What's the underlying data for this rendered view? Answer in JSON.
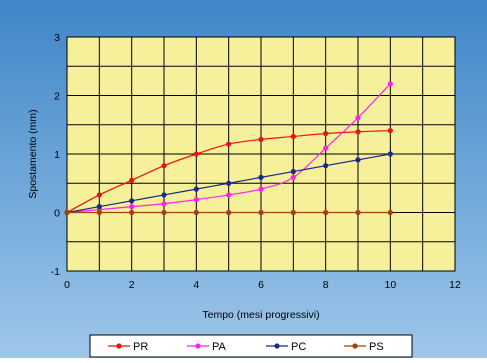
{
  "chart_data": {
    "type": "line",
    "title": "",
    "xlabel": "Tempo (mesi progressivi)",
    "ylabel": "Spostamento (mm)",
    "xlim": [
      0,
      12
    ],
    "ylim": [
      -1,
      3
    ],
    "x_ticks": [
      "0",
      "2",
      "4",
      "6",
      "8",
      "10",
      "12"
    ],
    "y_ticks": [
      "-1",
      "0",
      "1",
      "2",
      "3"
    ],
    "grid": true,
    "legend_position": "bottom",
    "background_color": "#f7f09a",
    "series": [
      {
        "name": "PR",
        "color": "#ee1111",
        "x": [
          0,
          1,
          2,
          3,
          4,
          5,
          6,
          7,
          8,
          9,
          10
        ],
        "y": [
          0,
          0.3,
          0.55,
          0.8,
          1.0,
          1.17,
          1.25,
          1.3,
          1.35,
          1.38,
          1.4
        ]
      },
      {
        "name": "PA",
        "color": "#ff22ee",
        "x": [
          0,
          1,
          2,
          3,
          4,
          5,
          6,
          7,
          8,
          9,
          10
        ],
        "y": [
          0,
          0.05,
          0.1,
          0.15,
          0.22,
          0.3,
          0.4,
          0.6,
          1.1,
          1.62,
          2.2
        ]
      },
      {
        "name": "PC",
        "color": "#1a2a8a",
        "x": [
          0,
          1,
          2,
          3,
          4,
          5,
          6,
          7,
          8,
          9,
          10
        ],
        "y": [
          0,
          0.1,
          0.2,
          0.3,
          0.4,
          0.5,
          0.6,
          0.7,
          0.8,
          0.9,
          1.0
        ]
      },
      {
        "name": "PS",
        "color": "#a0400e",
        "x": [
          0,
          1,
          2,
          3,
          4,
          5,
          6,
          7,
          8,
          9,
          10
        ],
        "y": [
          0,
          0,
          0,
          0,
          0,
          0,
          0,
          0,
          0,
          0,
          0
        ]
      }
    ]
  }
}
